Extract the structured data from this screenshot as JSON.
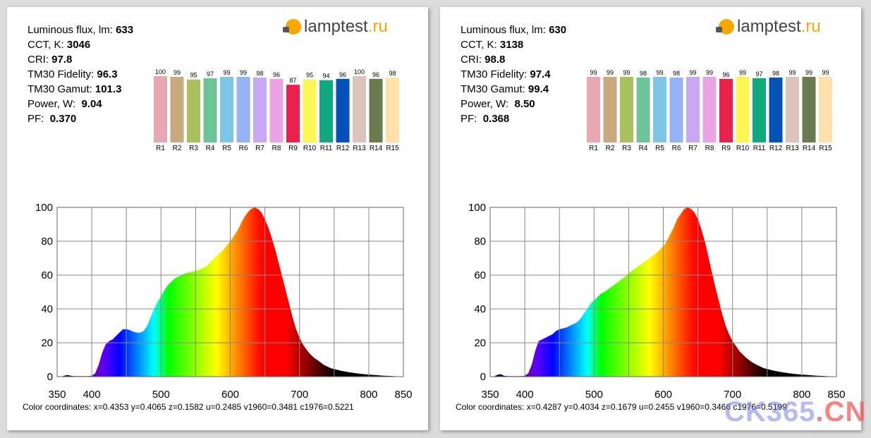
{
  "logo": {
    "brand": "lamptest",
    "tld": ".ru"
  },
  "labels": {
    "flux": "Luminous flux, lm:",
    "cct": "CCT, K:",
    "cri": "CRI:",
    "tm30f": "TM30 Fidelity:",
    "tm30g": "TM30 Gamut:",
    "power": "Power, W:",
    "pf": "PF:",
    "coords_prefix": "Color coordinates:"
  },
  "colors": {
    "swatches": [
      "#e8a7b0",
      "#c9a97f",
      "#a9c15d",
      "#6fc497",
      "#7fc6e6",
      "#95b2f7",
      "#c8a8f2",
      "#eaa4e6",
      "#e8214d",
      "#fbf653",
      "#11a97f",
      "#0553b8",
      "#dcc3bc",
      "#6c7a4f",
      "#fee0ab"
    ]
  },
  "watermark": {
    "a": "CK365",
    "b": ".CN"
  },
  "panels": [
    {
      "stats": {
        "flux": "633",
        "cct": "3046",
        "cri": "97.8",
        "tm30f": "96.3",
        "tm30g": "101.3",
        "power": "9.04",
        "pf": "0.370"
      },
      "coords": "x=0.4353 y=0.4065 z=0.1582 u=0.2485 v1960=0.3481 c1976=0.5221",
      "cri_chart": {
        "labels": [
          "R1",
          "R2",
          "R3",
          "R4",
          "R5",
          "R6",
          "R7",
          "R8",
          "R9",
          "R10",
          "R11",
          "R12",
          "R13",
          "R14",
          "R15"
        ],
        "values": [
          100,
          99,
          95,
          97,
          99,
          99,
          98,
          96,
          87,
          95,
          94,
          96,
          100,
          96,
          98
        ]
      },
      "chart_data": {
        "type": "area",
        "xlim": [
          350,
          850
        ],
        "ylim": [
          0,
          100
        ],
        "xticks": [
          "350",
          "400",
          "500",
          "600",
          "700",
          "800",
          "850"
        ],
        "yticks": [
          "0",
          "20",
          "40",
          "60",
          "80",
          "100"
        ],
        "x": [
          350,
          355,
          360,
          365,
          370,
          375,
          380,
          385,
          390,
          395,
          400,
          405,
          410,
          415,
          420,
          425,
          430,
          435,
          440,
          445,
          450,
          455,
          460,
          465,
          470,
          475,
          480,
          485,
          490,
          495,
          500,
          505,
          510,
          515,
          520,
          525,
          530,
          535,
          540,
          545,
          550,
          555,
          560,
          565,
          570,
          575,
          580,
          585,
          590,
          595,
          600,
          605,
          610,
          615,
          620,
          625,
          630,
          635,
          640,
          645,
          650,
          655,
          660,
          665,
          670,
          675,
          680,
          685,
          690,
          695,
          700,
          705,
          710,
          715,
          720,
          725,
          730,
          735,
          740,
          745,
          750,
          760,
          770,
          780,
          790,
          800,
          810,
          820,
          830,
          840,
          850
        ],
        "y": [
          0,
          0,
          0.5,
          1,
          0.5,
          0.3,
          0.3,
          0.3,
          0.3,
          0.3,
          0.5,
          2,
          7,
          14,
          19,
          21,
          22,
          24,
          26,
          28,
          28,
          27.5,
          26.5,
          26,
          26,
          27,
          30,
          35,
          40,
          44,
          47.5,
          51,
          54,
          56,
          58,
          59,
          60,
          61,
          61.5,
          62,
          62.5,
          63,
          64,
          65,
          67,
          69,
          71,
          73,
          75,
          77.5,
          80,
          83,
          86,
          90,
          94,
          97,
          99,
          100,
          99,
          97,
          93,
          88,
          82,
          75,
          67,
          59,
          51,
          43,
          35,
          28,
          23,
          19,
          16,
          13.5,
          11.5,
          10,
          8.5,
          7,
          6,
          5,
          4.5,
          3.5,
          2.7,
          2.1,
          1.6,
          1.2,
          0.9,
          0.6,
          0.4,
          0.2,
          0.1
        ]
      }
    },
    {
      "stats": {
        "flux": "630",
        "cct": "3138",
        "cri": "98.8",
        "tm30f": "97.4",
        "tm30g": "99.4",
        "power": "8.50",
        "pf": "0.368"
      },
      "coords": "x=0.4287 y=0.4034 z=0.1679 u=0.2455 v1960=0.3466 c1976=0.5199",
      "cri_chart": {
        "labels": [
          "R1",
          "R2",
          "R3",
          "R4",
          "R5",
          "R6",
          "R7",
          "R8",
          "R9",
          "R10",
          "R11",
          "R12",
          "R13",
          "R14",
          "R15"
        ],
        "values": [
          99,
          99,
          99,
          98,
          99,
          98,
          99,
          99,
          96,
          99,
          97,
          98,
          99,
          99,
          99
        ]
      },
      "chart_data": {
        "type": "area",
        "xlim": [
          350,
          850
        ],
        "ylim": [
          0,
          100
        ],
        "xticks": [
          "350",
          "400",
          "500",
          "600",
          "700",
          "800",
          "850"
        ],
        "yticks": [
          "0",
          "20",
          "40",
          "60",
          "80",
          "100"
        ],
        "x": [
          350,
          355,
          360,
          365,
          370,
          375,
          380,
          385,
          390,
          395,
          400,
          405,
          410,
          415,
          420,
          425,
          430,
          435,
          440,
          445,
          450,
          455,
          460,
          465,
          470,
          475,
          480,
          485,
          490,
          495,
          500,
          505,
          510,
          515,
          520,
          525,
          530,
          535,
          540,
          545,
          550,
          555,
          560,
          565,
          570,
          575,
          580,
          585,
          590,
          595,
          600,
          605,
          610,
          615,
          620,
          625,
          630,
          635,
          640,
          645,
          650,
          655,
          660,
          665,
          670,
          675,
          680,
          685,
          690,
          695,
          700,
          705,
          710,
          715,
          720,
          725,
          730,
          735,
          740,
          745,
          750,
          760,
          770,
          780,
          790,
          800,
          810,
          820,
          830,
          840,
          850
        ],
        "y": [
          0,
          0,
          1,
          1.5,
          0.5,
          0.3,
          0.3,
          0.3,
          0.3,
          0.3,
          0.5,
          2,
          7,
          15,
          21,
          22,
          23,
          24,
          25,
          27,
          28,
          28.5,
          29,
          30,
          31,
          32,
          34,
          37,
          40,
          43,
          45,
          47,
          49,
          50,
          51.5,
          53,
          54.5,
          56,
          57.5,
          59,
          61,
          62.5,
          64,
          65.5,
          67,
          68.5,
          70,
          71.5,
          73,
          75,
          77,
          80,
          84,
          88,
          93,
          96,
          99,
          100,
          99,
          97,
          93,
          87,
          80,
          71,
          62,
          53,
          45,
          37,
          30,
          25,
          21,
          18,
          15,
          13,
          11,
          9.5,
          8,
          7,
          6,
          5,
          4.5,
          3.5,
          2.7,
          2.1,
          1.6,
          1.2,
          0.9,
          0.6,
          0.4,
          0.2,
          0.1
        ]
      }
    }
  ]
}
